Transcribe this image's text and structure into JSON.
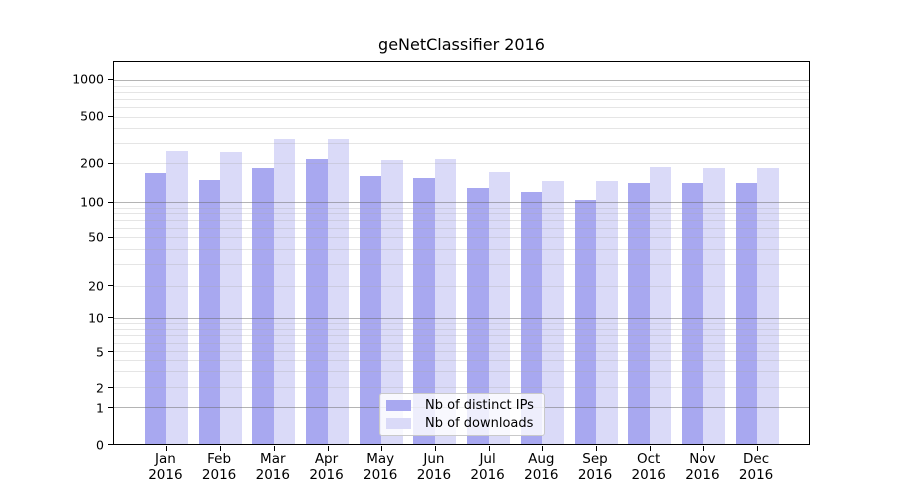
{
  "title": "geNetClassifier 2016",
  "legend": {
    "items": [
      {
        "label": "Nb of distinct IPs",
        "color": "#a8a8f0"
      },
      {
        "label": "Nb of downloads",
        "color": "#dadaf8"
      }
    ]
  },
  "chart_data": {
    "type": "bar",
    "title": "geNetClassifier 2016",
    "categories": [
      "Jan",
      "Feb",
      "Mar",
      "Apr",
      "May",
      "Jun",
      "Jul",
      "Aug",
      "Sep",
      "Oct",
      "Nov",
      "Dec"
    ],
    "category_year": "2016",
    "series": [
      {
        "name": "Nb of distinct IPs",
        "color": "#a8a8f0",
        "values": [
          170,
          150,
          185,
          220,
          160,
          154,
          128,
          120,
          105,
          142,
          140,
          142
        ]
      },
      {
        "name": "Nb of downloads",
        "color": "#dadaf8",
        "values": [
          253,
          248,
          320,
          325,
          215,
          220,
          172,
          145,
          147,
          188,
          185,
          183
        ]
      }
    ],
    "y_axis": {
      "scale": "log-like",
      "tick_values": [
        0,
        1,
        2,
        5,
        10,
        20,
        50,
        100,
        200,
        500,
        1000
      ],
      "major_gridline_values": [
        1,
        10,
        100,
        1000
      ],
      "minor_gridline_values": [
        2,
        3,
        4,
        5,
        6,
        7,
        8,
        9,
        20,
        30,
        40,
        50,
        60,
        70,
        80,
        90,
        200,
        300,
        400,
        500,
        600,
        700,
        800,
        900
      ],
      "ymin": 0,
      "ymax_displayed": 1400
    },
    "grid": true,
    "legend_position": "lower center"
  }
}
